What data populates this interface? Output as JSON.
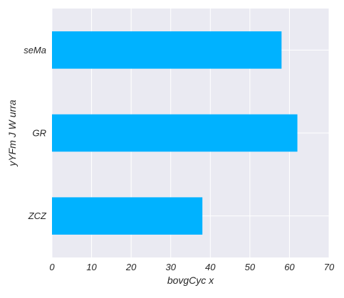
{
  "chart_data": {
    "type": "bar",
    "orientation": "horizontal",
    "categories": [
      "seMa",
      "GR",
      "ZCZ"
    ],
    "values": [
      58,
      62,
      38
    ],
    "xlabel": "bovgCyc x",
    "ylabel": "yYFm J W urra",
    "xlim": [
      0,
      70
    ],
    "xticks": [
      0,
      10,
      20,
      30,
      40,
      50,
      60,
      70
    ],
    "grid": true,
    "legend": "none",
    "colors": {
      "bar": "#00b2ff",
      "plot_background": "#eaeaf2",
      "grid": "#ffffff",
      "text": "#262626"
    }
  }
}
